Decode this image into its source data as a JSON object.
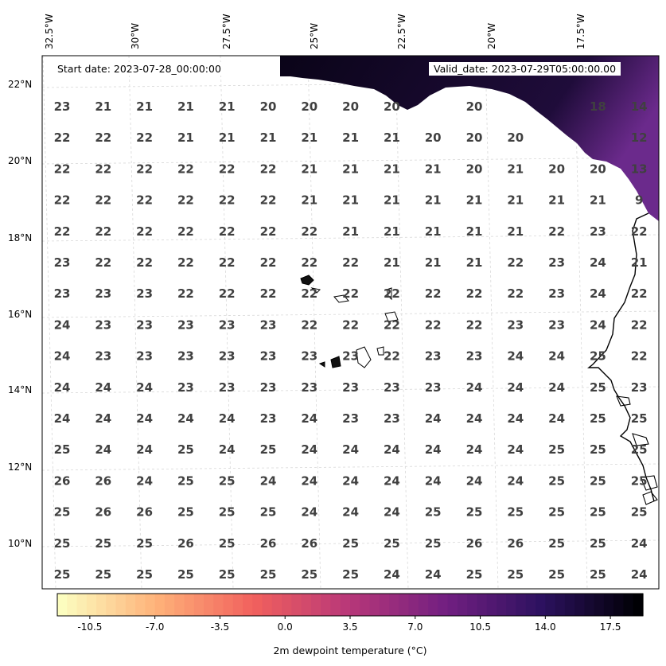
{
  "header": {
    "start_date": "Start date: 2023-07-28_00:00:00",
    "valid_date": "Valid_date: 2023-07-29T05:00:00.00"
  },
  "axes": {
    "lon_labels": [
      "32.5°W",
      "30°W",
      "27.5°W",
      "25°W",
      "22.5°W",
      "20°W",
      "17.5°W"
    ],
    "lat_labels": [
      "22°N",
      "20°N",
      "18°N",
      "16°N",
      "14°N",
      "12°N",
      "10°N"
    ]
  },
  "grid_values": [
    [
      "23",
      "21",
      "21",
      "21",
      "21",
      "20",
      "20",
      "20",
      "20",
      "",
      "20",
      "",
      "",
      "18",
      "14"
    ],
    [
      "22",
      "22",
      "22",
      "21",
      "21",
      "21",
      "21",
      "21",
      "21",
      "20",
      "20",
      "20",
      "",
      "",
      "12"
    ],
    [
      "22",
      "22",
      "22",
      "22",
      "22",
      "22",
      "21",
      "21",
      "21",
      "21",
      "20",
      "21",
      "20",
      "20",
      "13"
    ],
    [
      "22",
      "22",
      "22",
      "22",
      "22",
      "22",
      "21",
      "21",
      "21",
      "21",
      "21",
      "21",
      "21",
      "21",
      "9"
    ],
    [
      "22",
      "22",
      "22",
      "22",
      "22",
      "22",
      "22",
      "21",
      "21",
      "21",
      "21",
      "21",
      "22",
      "23",
      "22"
    ],
    [
      "23",
      "22",
      "22",
      "22",
      "22",
      "22",
      "22",
      "22",
      "21",
      "21",
      "21",
      "22",
      "23",
      "24",
      "21"
    ],
    [
      "23",
      "23",
      "23",
      "22",
      "22",
      "22",
      "22",
      "22",
      "22",
      "22",
      "22",
      "22",
      "23",
      "24",
      "22"
    ],
    [
      "24",
      "23",
      "23",
      "23",
      "23",
      "23",
      "22",
      "22",
      "22",
      "22",
      "22",
      "23",
      "23",
      "24",
      "22"
    ],
    [
      "24",
      "23",
      "23",
      "23",
      "23",
      "23",
      "23",
      "23",
      "22",
      "23",
      "23",
      "24",
      "24",
      "25",
      "22"
    ],
    [
      "24",
      "24",
      "24",
      "23",
      "23",
      "23",
      "23",
      "23",
      "23",
      "23",
      "24",
      "24",
      "24",
      "25",
      "23"
    ],
    [
      "24",
      "24",
      "24",
      "24",
      "24",
      "23",
      "24",
      "23",
      "23",
      "24",
      "24",
      "24",
      "24",
      "25",
      "25"
    ],
    [
      "25",
      "24",
      "24",
      "25",
      "24",
      "25",
      "24",
      "24",
      "24",
      "24",
      "24",
      "24",
      "25",
      "25",
      "25"
    ],
    [
      "26",
      "26",
      "24",
      "25",
      "25",
      "24",
      "24",
      "24",
      "24",
      "24",
      "24",
      "24",
      "25",
      "25",
      "25"
    ],
    [
      "25",
      "26",
      "26",
      "25",
      "25",
      "25",
      "24",
      "24",
      "24",
      "25",
      "25",
      "25",
      "25",
      "25",
      "25"
    ],
    [
      "25",
      "25",
      "25",
      "26",
      "25",
      "26",
      "26",
      "25",
      "25",
      "25",
      "26",
      "26",
      "25",
      "25",
      "24"
    ],
    [
      "25",
      "25",
      "25",
      "25",
      "25",
      "25",
      "25",
      "25",
      "24",
      "24",
      "25",
      "25",
      "25",
      "25",
      "24"
    ]
  ],
  "colorbar": {
    "ticks": [
      "-10.5",
      "-7.0",
      "-3.5",
      "0.0",
      "3.5",
      "7.0",
      "10.5",
      "14.0",
      "17.5"
    ],
    "label": "2m dewpoint temperature (°C)",
    "colors": [
      "#fcfdbf",
      "#feb078",
      "#f1605d",
      "#b73779",
      "#721f81",
      "#2c115f",
      "#000004"
    ]
  },
  "colors": {
    "land_fill": "#1a0b2e",
    "land_accent": "#6b2a8c",
    "coast": "#000000"
  }
}
